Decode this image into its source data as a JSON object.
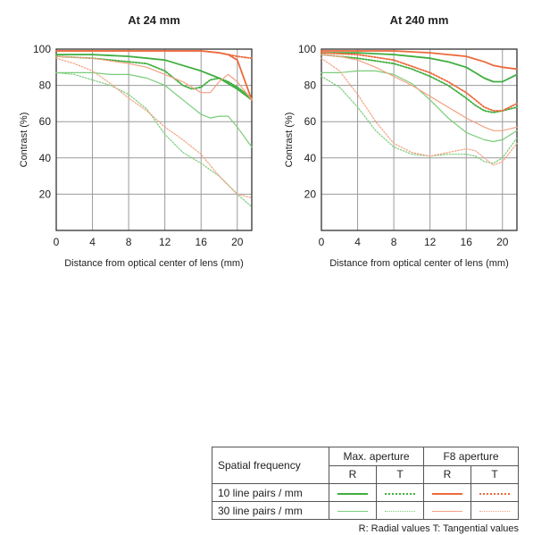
{
  "chart_data": [
    {
      "type": "line",
      "title": "At 24 mm",
      "xlabel": "Distance from optical center of lens (mm)",
      "ylabel": "Contrast (%)",
      "xlim": [
        0,
        21.6
      ],
      "ylim": [
        0,
        100
      ],
      "xticks": [
        0,
        4,
        8,
        12,
        16,
        20
      ],
      "yticks": [
        20,
        40,
        60,
        80,
        100
      ],
      "grid": true,
      "series": [
        {
          "key": "maxR10",
          "aperture": "max",
          "freq": 10,
          "kind": "R",
          "x": [
            0,
            4,
            8,
            12,
            14,
            16,
            18,
            20,
            21.6
          ],
          "y": [
            97,
            97,
            96,
            94,
            91,
            88,
            84,
            78,
            72
          ]
        },
        {
          "key": "maxT10",
          "aperture": "max",
          "freq": 10,
          "kind": "T",
          "x": [
            0,
            4,
            8,
            10,
            12,
            14,
            15,
            16,
            17,
            18,
            19,
            20,
            21.6
          ],
          "y": [
            96,
            95,
            93,
            92,
            88,
            80,
            78,
            79,
            83,
            84,
            82,
            79,
            73
          ]
        },
        {
          "key": "maxR30",
          "aperture": "max",
          "freq": 30,
          "kind": "R",
          "x": [
            0,
            4,
            6,
            8,
            10,
            12,
            14,
            16,
            17,
            18,
            19,
            20,
            21.6
          ],
          "y": [
            87,
            87,
            86,
            86,
            84,
            80,
            72,
            64,
            62,
            63,
            63,
            57,
            46
          ]
        },
        {
          "key": "maxT30",
          "aperture": "max",
          "freq": 30,
          "kind": "T",
          "x": [
            0,
            2,
            4,
            6,
            8,
            10,
            12,
            14,
            16,
            18,
            20,
            21.6
          ],
          "y": [
            87,
            86,
            83,
            80,
            75,
            67,
            53,
            43,
            37,
            30,
            20,
            13
          ]
        },
        {
          "key": "f8R10",
          "aperture": "f8",
          "freq": 10,
          "kind": "R",
          "x": [
            0,
            4,
            8,
            12,
            14,
            16,
            18,
            19,
            20,
            21.6
          ],
          "y": [
            99,
            99,
            99,
            99,
            99,
            99,
            98,
            97,
            94,
            72
          ]
        },
        {
          "key": "f8T10",
          "aperture": "f8",
          "freq": 10,
          "kind": "T",
          "x": [
            0,
            4,
            8,
            12,
            16,
            18,
            19,
            20,
            21.6
          ],
          "y": [
            99,
            99,
            99,
            99,
            99,
            98,
            97,
            96,
            95
          ]
        },
        {
          "key": "f8R30",
          "aperture": "f8",
          "freq": 30,
          "kind": "R",
          "x": [
            0,
            4,
            8,
            10,
            12,
            14,
            16,
            17,
            18,
            19,
            20,
            21.6
          ],
          "y": [
            96,
            95,
            92,
            90,
            86,
            82,
            76,
            76,
            82,
            86,
            82,
            72
          ]
        },
        {
          "key": "f8T30",
          "aperture": "f8",
          "freq": 30,
          "kind": "T",
          "x": [
            0,
            2,
            4,
            6,
            8,
            10,
            12,
            14,
            16,
            18,
            20,
            21.6
          ],
          "y": [
            95,
            92,
            88,
            81,
            73,
            66,
            57,
            50,
            42,
            30,
            20,
            18
          ]
        }
      ]
    },
    {
      "type": "line",
      "title": "At 240 mm",
      "xlabel": "Distance from optical center of lens (mm)",
      "ylabel": "Contrast (%)",
      "xlim": [
        0,
        21.6
      ],
      "ylim": [
        0,
        100
      ],
      "xticks": [
        0,
        4,
        8,
        12,
        16,
        20
      ],
      "yticks": [
        20,
        40,
        60,
        80,
        100
      ],
      "grid": true,
      "series": [
        {
          "key": "maxR10",
          "aperture": "max",
          "freq": 10,
          "kind": "R",
          "x": [
            0,
            4,
            8,
            12,
            14,
            16,
            17,
            18,
            19,
            20,
            21.6
          ],
          "y": [
            98,
            98,
            97,
            95,
            93,
            90,
            87,
            84,
            82,
            82,
            86
          ]
        },
        {
          "key": "maxT10",
          "aperture": "max",
          "freq": 10,
          "kind": "T",
          "x": [
            0,
            4,
            8,
            10,
            12,
            14,
            16,
            17,
            18,
            19,
            20,
            21.6
          ],
          "y": [
            97,
            95,
            92,
            89,
            85,
            80,
            73,
            69,
            66,
            65,
            66,
            68
          ]
        },
        {
          "key": "maxR30",
          "aperture": "max",
          "freq": 30,
          "kind": "R",
          "x": [
            0,
            2,
            4,
            6,
            8,
            10,
            12,
            14,
            16,
            18,
            19,
            20,
            21.6
          ],
          "y": [
            87,
            87,
            88,
            88,
            86,
            81,
            72,
            62,
            54,
            50,
            49,
            50,
            55
          ]
        },
        {
          "key": "maxT30",
          "aperture": "max",
          "freq": 30,
          "kind": "T",
          "x": [
            0,
            2,
            4,
            6,
            8,
            10,
            12,
            14,
            16,
            17,
            18,
            19,
            20,
            21.6
          ],
          "y": [
            85,
            79,
            68,
            55,
            46,
            42,
            41,
            42,
            42,
            41,
            38,
            37,
            40,
            51
          ]
        },
        {
          "key": "f8R10",
          "aperture": "f8",
          "freq": 10,
          "kind": "R",
          "x": [
            0,
            4,
            8,
            12,
            14,
            16,
            18,
            19,
            20,
            21.6
          ],
          "y": [
            99,
            99,
            99,
            98,
            97,
            96,
            93,
            91,
            90,
            89
          ]
        },
        {
          "key": "f8T10",
          "aperture": "f8",
          "freq": 10,
          "kind": "T",
          "x": [
            0,
            4,
            8,
            12,
            14,
            16,
            17,
            18,
            19,
            20,
            21.6
          ],
          "y": [
            98,
            97,
            94,
            87,
            82,
            76,
            72,
            68,
            66,
            66,
            70
          ]
        },
        {
          "key": "f8R30",
          "aperture": "f8",
          "freq": 30,
          "kind": "R",
          "x": [
            0,
            2,
            4,
            6,
            8,
            10,
            12,
            14,
            16,
            18,
            19,
            20,
            21.6
          ],
          "y": [
            97,
            96,
            94,
            90,
            85,
            80,
            74,
            68,
            62,
            57,
            55,
            55,
            57
          ]
        },
        {
          "key": "f8T30",
          "aperture": "f8",
          "freq": 30,
          "kind": "T",
          "x": [
            0,
            2,
            4,
            6,
            8,
            10,
            12,
            14,
            16,
            17,
            18,
            19,
            20,
            21.6
          ],
          "y": [
            95,
            88,
            75,
            60,
            48,
            43,
            41,
            43,
            45,
            44,
            40,
            36,
            38,
            48
          ]
        }
      ]
    }
  ],
  "colors": {
    "max": "#3fae3f",
    "f8": "#ec6a3c",
    "max_light": "#79cc79",
    "f8_light": "#f4a182"
  },
  "legend": {
    "header_label": "Spatial frequency",
    "max_aperture": "Max. aperture",
    "f8_aperture": "F8 aperture",
    "r_label": "R",
    "t_label": "T",
    "row_10": "10 line pairs / mm",
    "row_30": "30 line pairs / mm"
  },
  "footnote": "R: Radial values  T: Tangential values"
}
